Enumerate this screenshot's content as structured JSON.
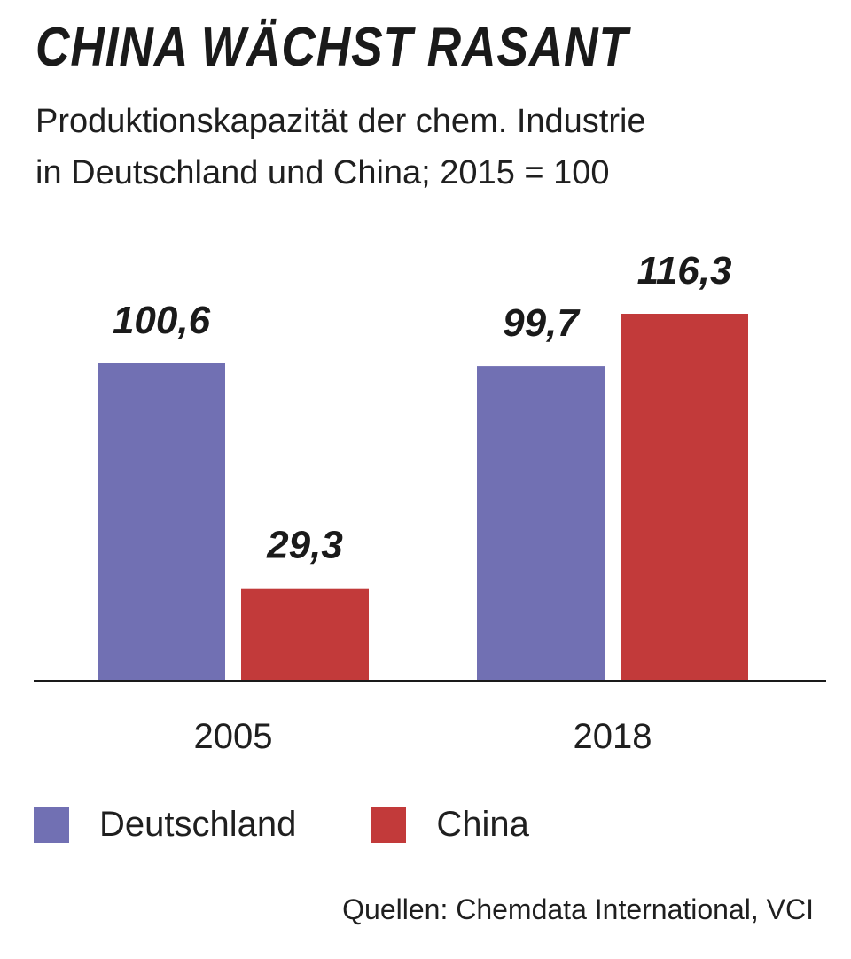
{
  "chart_data": {
    "type": "bar",
    "title": "CHINA WÄCHST RASANT",
    "subtitle_lines": [
      "Produktionskapazität der chem. Industrie",
      "in Deutschland und China; 2015 = 100"
    ],
    "categories": [
      "2005",
      "2018"
    ],
    "series": [
      {
        "name": "Deutschland",
        "color": "#7170b3",
        "values": [
          100.6,
          99.7
        ],
        "value_labels": [
          "100,6",
          "99,7"
        ]
      },
      {
        "name": "China",
        "color": "#c23a3a",
        "values": [
          29.3,
          116.3
        ],
        "value_labels": [
          "29,3",
          "116,3"
        ]
      }
    ],
    "ylim": [
      0,
      116.3
    ],
    "grid": false,
    "legend_position": "bottom-left",
    "source": "Quellen: Chemdata International, VCI"
  }
}
